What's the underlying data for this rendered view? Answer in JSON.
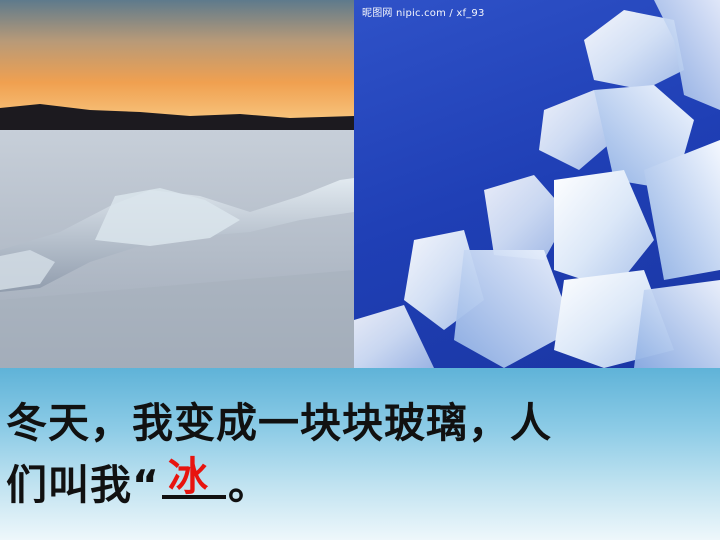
{
  "watermark": "昵图网 nipic.com / xf_93",
  "caption": {
    "line1": "冬天，我变成一块块玻璃，人",
    "line2_prefix": "们叫我“",
    "answer": "冰",
    "line2_suffix": "。"
  },
  "colors": {
    "answer": "#e8140f",
    "right_background": "#1f3fb5",
    "band_top": "#5fb3d8"
  }
}
